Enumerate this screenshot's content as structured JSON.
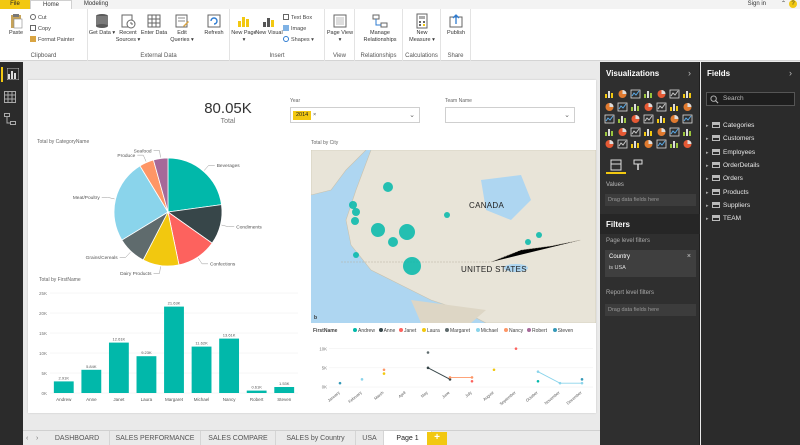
{
  "ribbon": {
    "file_tab": "File",
    "tabs": [
      "Home",
      "Modeling"
    ],
    "sign_in": "Sign in",
    "clipboard": {
      "paste": "Paste",
      "cut": "Cut",
      "copy": "Copy",
      "format_painter": "Format Painter",
      "label": "Clipboard"
    },
    "external_data": {
      "get_data": "Get Data ▾",
      "recent_sources": "Recent Sources ▾",
      "enter_data": "Enter Data",
      "edit_queries": "Edit Queries ▾",
      "refresh": "Refresh",
      "label": "External Data"
    },
    "insert": {
      "new_page": "New Page ▾",
      "new_visual": "New Visual",
      "text_box": "Text Box",
      "image": "Image",
      "shapes": "Shapes ▾",
      "label": "Insert"
    },
    "view": {
      "page_view": "Page View ▾",
      "label": "View"
    },
    "relationships": {
      "manage": "Manage Relationships",
      "label": "Relationships"
    },
    "calculations": {
      "new_measure": "New Measure ▾",
      "label": "Calculations"
    },
    "share": {
      "publish": "Publish",
      "label": "Share"
    }
  },
  "canvas": {
    "kpi": {
      "value": "80.05K",
      "label": "Total"
    },
    "year_slicer": {
      "title": "Year",
      "value": "2014"
    },
    "team_slicer": {
      "title": "Team Name"
    },
    "pie": {
      "title": "Total by CategoryName",
      "labels": [
        "Beverages",
        "Condiments",
        "Confections",
        "Dairy Products",
        "Grains/Cereals",
        "Meat/Poultry",
        "Produce",
        "Seafood"
      ]
    },
    "map": {
      "title": "Total by City",
      "canada": "CANADA",
      "us": "UNITED STATES"
    },
    "bar": {
      "title": "Total by FirstName"
    },
    "line": {
      "legend_title": "FirstName"
    }
  },
  "chart_data": [
    {
      "type": "pie",
      "title": "Total by CategoryName",
      "categories": [
        "Beverages",
        "Condiments",
        "Confections",
        "Dairy Products",
        "Grains/Cereals",
        "Meat/Poultry",
        "Produce",
        "Seafood"
      ],
      "values": [
        21,
        11,
        11,
        10,
        8,
        23,
        4,
        4
      ],
      "colors": [
        "#01b8aa",
        "#374649",
        "#fd625e",
        "#f2c80f",
        "#5f6b6d",
        "#8ad4eb",
        "#fe9666",
        "#a66999"
      ]
    },
    {
      "type": "bar",
      "title": "Total by FirstName",
      "categories": [
        "Andrew",
        "Anne",
        "Janet",
        "Laura",
        "Margaret",
        "Michael",
        "Nancy",
        "Robert",
        "Steven"
      ],
      "values": [
        2.9,
        5.8,
        12.6,
        9.2,
        21.6,
        11.6,
        13.6,
        0.6,
        1.5
      ],
      "data_labels": [
        "2.91K",
        "5.84K",
        "12.61K",
        "9.23K",
        "21.63K",
        "11.62K",
        "13.61K",
        "0.61K",
        "1.53K"
      ],
      "yticks": [
        "0K",
        "5K",
        "10K",
        "15K",
        "20K",
        "25K"
      ],
      "ylim": [
        0,
        25
      ],
      "color": "#01b8aa"
    },
    {
      "type": "line",
      "categories": [
        "January",
        "February",
        "March",
        "April",
        "May",
        "June",
        "July",
        "August",
        "September",
        "October",
        "November",
        "December"
      ],
      "yticks": [
        "0K",
        "5K",
        "10K"
      ],
      "ylim": [
        0,
        12
      ],
      "series": [
        {
          "name": "Andrew",
          "color": "#01b8aa",
          "values": [
            null,
            null,
            null,
            null,
            null,
            null,
            null,
            null,
            null,
            1.5,
            null,
            null
          ]
        },
        {
          "name": "Anne",
          "color": "#374649",
          "values": [
            null,
            null,
            null,
            null,
            5,
            2,
            null,
            null,
            null,
            null,
            null,
            null
          ]
        },
        {
          "name": "Janet",
          "color": "#fd625e",
          "values": [
            null,
            null,
            null,
            null,
            null,
            null,
            1.5,
            null,
            10,
            null,
            null,
            null
          ]
        },
        {
          "name": "Laura",
          "color": "#f2c80f",
          "values": [
            null,
            null,
            3.5,
            null,
            null,
            null,
            null,
            4.5,
            null,
            null,
            null,
            null
          ]
        },
        {
          "name": "Margaret",
          "color": "#5f6b6d",
          "values": [
            null,
            null,
            null,
            null,
            9,
            null,
            null,
            null,
            null,
            null,
            null,
            null
          ]
        },
        {
          "name": "Michael",
          "color": "#8ad4eb",
          "values": [
            null,
            2,
            null,
            null,
            null,
            null,
            null,
            null,
            null,
            4,
            1,
            1
          ]
        },
        {
          "name": "Nancy",
          "color": "#fe9666",
          "values": [
            null,
            null,
            4.5,
            null,
            null,
            2.5,
            2.5,
            null,
            null,
            null,
            null,
            null
          ]
        },
        {
          "name": "Robert",
          "color": "#a66999",
          "values": [
            null,
            null,
            null,
            null,
            null,
            null,
            null,
            null,
            null,
            null,
            null,
            null
          ]
        },
        {
          "name": "Steven",
          "color": "#3599b8",
          "values": [
            1,
            null,
            null,
            null,
            null,
            null,
            null,
            null,
            null,
            null,
            null,
            2
          ]
        }
      ]
    }
  ],
  "map_points": [
    {
      "lat": 53.5,
      "lon": -113.5,
      "r": 5
    },
    {
      "lat": 49.3,
      "lon": -123.1,
      "r": 4
    },
    {
      "lat": 47.6,
      "lon": -122.3,
      "r": 4
    },
    {
      "lat": 45.5,
      "lon": -122.7,
      "r": 4
    },
    {
      "lat": 43.6,
      "lon": -116.2,
      "r": 7
    },
    {
      "lat": 40.7,
      "lon": -111.9,
      "r": 5
    },
    {
      "lat": 43.0,
      "lon": -108.0,
      "r": 8
    },
    {
      "lat": 37.8,
      "lon": -122.4,
      "r": 3
    },
    {
      "lat": 35.1,
      "lon": -106.6,
      "r": 9
    },
    {
      "lat": 46.9,
      "lon": -96.8,
      "r": 3
    },
    {
      "lat": 40.7,
      "lon": -74.0,
      "r": 3
    },
    {
      "lat": 42.3,
      "lon": -71.0,
      "r": 3
    }
  ],
  "page_tabs": [
    "DASHBOARD",
    "SALES PERFORMANCE",
    "SALES COMPARE",
    "SALES by Country",
    "USA",
    "Page 1"
  ],
  "active_tab": "Page 1",
  "visualizations": {
    "title": "Visualizations",
    "values_label": "Values",
    "drag_fields": "Drag data fields here"
  },
  "filters": {
    "title": "Filters",
    "page_level": "Page level filters",
    "card_name": "Country",
    "card_value": "is USA",
    "report_level": "Report level filters",
    "drag_fields": "Drag data fields here"
  },
  "fields": {
    "title": "Fields",
    "search_placeholder": "Search",
    "tables": [
      "Categories",
      "Customers",
      "Employees",
      "OrderDetails",
      "Orders",
      "Products",
      "Suppliers",
      "TEAM"
    ]
  },
  "colors": {
    "accent": "#f2c811",
    "teal": "#01b8aa",
    "pane_dark": "#2f2f2f"
  }
}
